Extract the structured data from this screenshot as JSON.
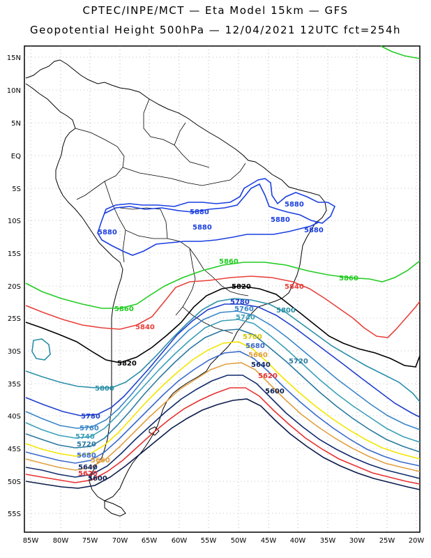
{
  "header": {
    "title_line1": "CPTEC/INPE/MCT —  Eta Model 15km — GFS",
    "title_line2": "Geopotential Height 500hPa — 12/04/2021 12UTC fct=254h"
  },
  "axes": {
    "lat_labels": [
      "15N",
      "10N",
      "5N",
      "EQ",
      "5S",
      "10S",
      "15S",
      "20S",
      "25S",
      "30S",
      "35S",
      "40S",
      "45S",
      "50S",
      "55S"
    ],
    "lon_labels": [
      "85W",
      "80W",
      "75W",
      "70W",
      "65W",
      "60W",
      "55W",
      "50W",
      "45W",
      "40W",
      "35W",
      "30W",
      "25W",
      "20W"
    ],
    "grid": "dotted"
  },
  "contours": [
    {
      "level": "5880",
      "color": "#1a3fe0"
    },
    {
      "level": "5860",
      "color": "#22cc22"
    },
    {
      "level": "5840",
      "color": "#e8403a"
    },
    {
      "level": "5820",
      "color": "#000000"
    },
    {
      "level": "5800",
      "color": "#2a8fa8"
    },
    {
      "level": "5780",
      "color": "#1f3fcc"
    },
    {
      "level": "5760",
      "color": "#3a86c8"
    },
    {
      "level": "5740",
      "color": "#3aa0b8"
    },
    {
      "level": "5720",
      "color": "#2a7aa0"
    },
    {
      "level": "5700",
      "color": "#f2e600"
    },
    {
      "level": "5680",
      "color": "#3a6acc"
    },
    {
      "level": "5660",
      "color": "#e0a040"
    },
    {
      "level": "5640",
      "color": "#102a6a"
    },
    {
      "level": "5620",
      "color": "#e83030"
    },
    {
      "level": "5600",
      "color": "#0a1a4a"
    }
  ]
}
